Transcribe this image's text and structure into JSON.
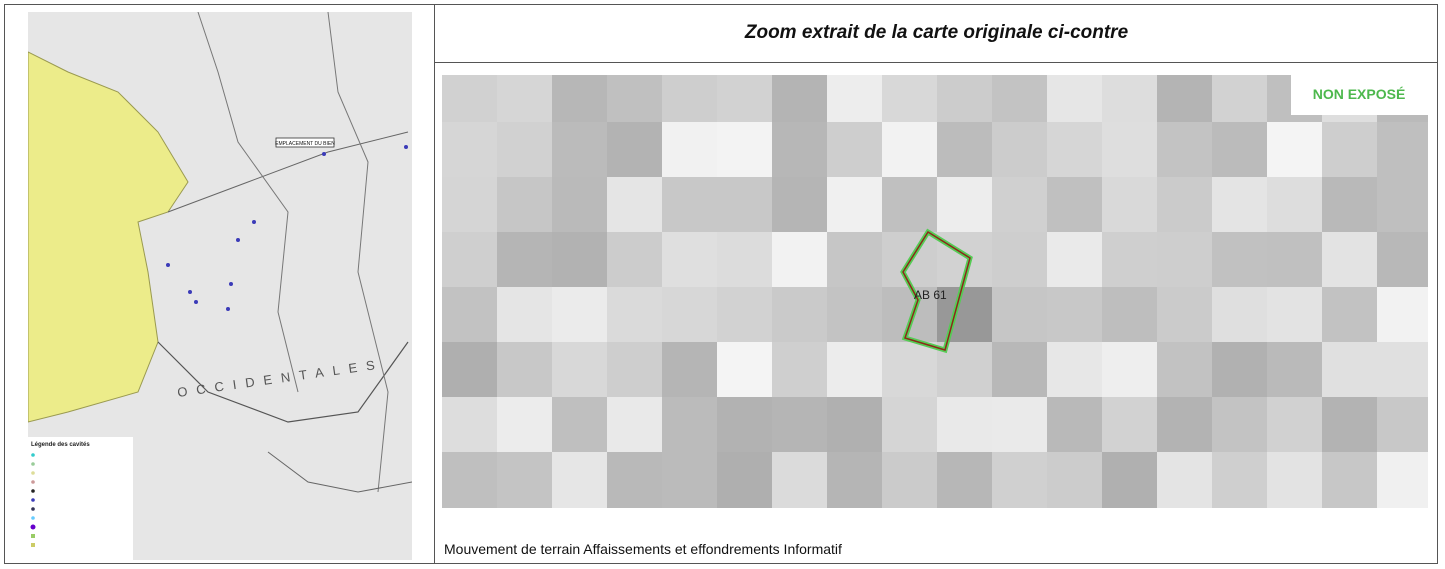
{
  "left_map": {
    "site_label": "EMPLACEMENT DU BIEN",
    "range_label": "OCCIDENTALES",
    "legend_title": "Légende des cavités"
  },
  "zoom": {
    "title": "Zoom extrait de la carte originale ci-contre",
    "status": "NON EXPOSÉ",
    "parcel": "AB 61",
    "caption": "Mouvement de terrain Affaissements et effondrements Informatif"
  }
}
